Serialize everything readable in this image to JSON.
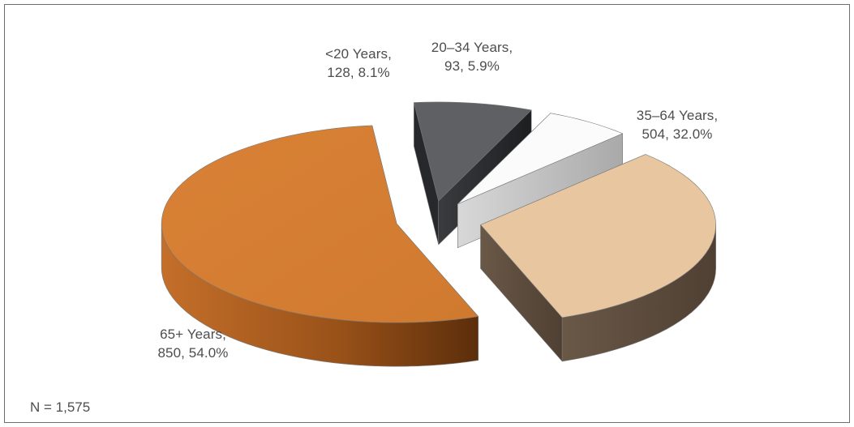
{
  "chart_data": {
    "type": "pie",
    "style": "3d-exploded",
    "total_label": "N = 1,575",
    "slices": [
      {
        "category": "<20 Years",
        "count": 128,
        "percent": 8.1,
        "count_label": "128",
        "percent_label": "8.1%",
        "top_color": "#5f6064",
        "side_color": "#27282b"
      },
      {
        "category": "20–34 Years",
        "count": 93,
        "percent": 5.9,
        "count_label": "93",
        "percent_label": "5.9%",
        "top_color": "#fbfbfb",
        "side_color": "#c8c8c8"
      },
      {
        "category": "35–64 Years",
        "count": 504,
        "percent": 32.0,
        "count_label": "504",
        "percent_label": "32.0%",
        "top_color": "#e8c6a0",
        "side_color": "#5e4d3e"
      },
      {
        "category": "65+ Years",
        "count": 850,
        "percent": 54.0,
        "count_label": "850",
        "percent_label": "54.0%",
        "top_color": "#d77f34",
        "side_color": "#8a4514"
      }
    ]
  }
}
